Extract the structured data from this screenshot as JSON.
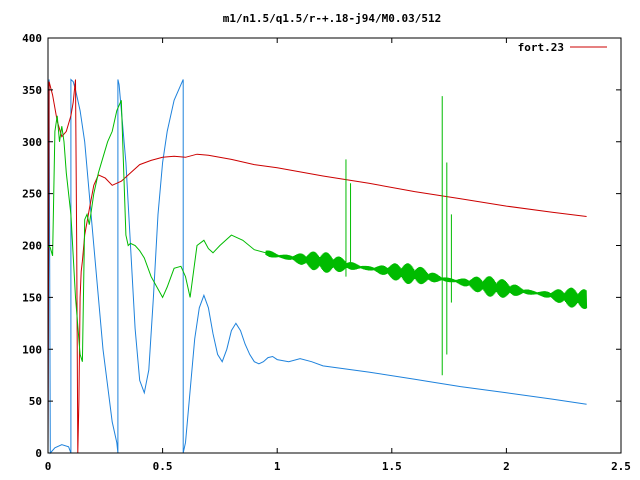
{
  "chart_data": {
    "type": "line",
    "title": "m1/n1.5/q1.5/r-+.18-j94/M0.03/512",
    "xlabel": "",
    "ylabel": "",
    "xlim": [
      0,
      2.5
    ],
    "ylim": [
      0,
      400
    ],
    "xticks": [
      0,
      0.5,
      1,
      1.5,
      2,
      2.5
    ],
    "xtick_labels": [
      "0",
      "0.5",
      "1",
      "1.5",
      "2",
      "2.5"
    ],
    "yticks": [
      0,
      50,
      100,
      150,
      200,
      250,
      300,
      350,
      400
    ],
    "ytick_labels": [
      "0",
      "50",
      "100",
      "150",
      "200",
      "250",
      "300",
      "350",
      "400"
    ],
    "grid": false,
    "legend_position": "top-right",
    "series": [
      {
        "name": "fort.23",
        "color": "#cc0000",
        "x": [
          0,
          0.005,
          0.02,
          0.04,
          0.06,
          0.08,
          0.1,
          0.11,
          0.12,
          0.125,
          0.13,
          0.135,
          0.14,
          0.145,
          0.15,
          0.16,
          0.18,
          0.2,
          0.22,
          0.25,
          0.28,
          0.32,
          0.36,
          0.4,
          0.45,
          0.5,
          0.55,
          0.6,
          0.65,
          0.7,
          0.8,
          0.9,
          1.0,
          1.2,
          1.4,
          1.6,
          1.8,
          2.0,
          2.2,
          2.35
        ],
        "y": [
          0,
          358,
          345,
          320,
          305,
          310,
          325,
          338,
          360,
          200,
          0,
          50,
          150,
          175,
          185,
          210,
          235,
          258,
          268,
          265,
          258,
          262,
          270,
          278,
          282,
          285,
          286,
          285,
          288,
          287,
          283,
          278,
          275,
          267,
          260,
          252,
          245,
          238,
          232,
          228
        ]
      },
      {
        "name": "",
        "color": "#00bb00",
        "x": [
          0,
          0.01,
          0.02,
          0.03,
          0.04,
          0.05,
          0.06,
          0.07,
          0.08,
          0.1,
          0.12,
          0.14,
          0.15,
          0.16,
          0.17,
          0.18,
          0.2,
          0.22,
          0.24,
          0.26,
          0.28,
          0.3,
          0.32,
          0.34,
          0.35,
          0.36,
          0.38,
          0.4,
          0.42,
          0.45,
          0.5,
          0.52,
          0.55,
          0.58,
          0.6,
          0.62,
          0.65,
          0.68,
          0.7,
          0.72,
          0.75,
          0.8,
          0.85,
          0.9,
          1.0,
          1.2,
          1.4,
          1.6,
          1.8,
          2.0,
          2.2,
          2.35
        ],
        "y": [
          200,
          198,
          190,
          310,
          325,
          300,
          315,
          300,
          270,
          230,
          150,
          95,
          88,
          225,
          230,
          220,
          250,
          270,
          285,
          300,
          310,
          330,
          340,
          210,
          200,
          202,
          200,
          195,
          188,
          170,
          150,
          160,
          178,
          180,
          170,
          150,
          200,
          205,
          197,
          193,
          200,
          210,
          205,
          196,
          190,
          184,
          178,
          172,
          165,
          158,
          152,
          148
        ]
      },
      {
        "name": "",
        "color": "#1e82dc",
        "x": [
          0,
          0.005,
          0.01,
          0.03,
          0.06,
          0.09,
          0.1,
          0.1,
          0.11,
          0.12,
          0.14,
          0.16,
          0.2,
          0.24,
          0.28,
          0.3,
          0.305,
          0.305,
          0.31,
          0.34,
          0.36,
          0.38,
          0.4,
          0.42,
          0.44,
          0.46,
          0.48,
          0.5,
          0.52,
          0.55,
          0.58,
          0.59,
          0.59,
          0.6,
          0.62,
          0.64,
          0.66,
          0.68,
          0.7,
          0.72,
          0.74,
          0.76,
          0.78,
          0.8,
          0.82,
          0.84,
          0.86,
          0.88,
          0.9,
          0.92,
          0.94,
          0.96,
          0.98,
          1.0,
          1.05,
          1.1,
          1.15,
          1.2,
          1.4,
          1.6,
          1.8,
          2.0,
          2.2,
          2.35
        ],
        "y": [
          0,
          360,
          0,
          5,
          8,
          6,
          0,
          360,
          358,
          350,
          330,
          300,
          200,
          100,
          30,
          10,
          0,
          360,
          355,
          280,
          200,
          120,
          70,
          58,
          80,
          150,
          230,
          280,
          310,
          340,
          355,
          360,
          0,
          10,
          60,
          110,
          140,
          152,
          140,
          115,
          95,
          88,
          100,
          118,
          125,
          118,
          105,
          95,
          88,
          86,
          88,
          92,
          93,
          90,
          88,
          91,
          88,
          84,
          78,
          71,
          64,
          58,
          52,
          47
        ]
      }
    ],
    "spikes": [
      {
        "x": 1.3,
        "top": 283,
        "bottom": 170
      },
      {
        "x": 1.32,
        "top": 260,
        "bottom": 180
      },
      {
        "x": 1.72,
        "top": 344,
        "bottom": 75
      },
      {
        "x": 1.74,
        "top": 280,
        "bottom": 95
      },
      {
        "x": 1.76,
        "top": 230,
        "bottom": 145
      }
    ]
  }
}
